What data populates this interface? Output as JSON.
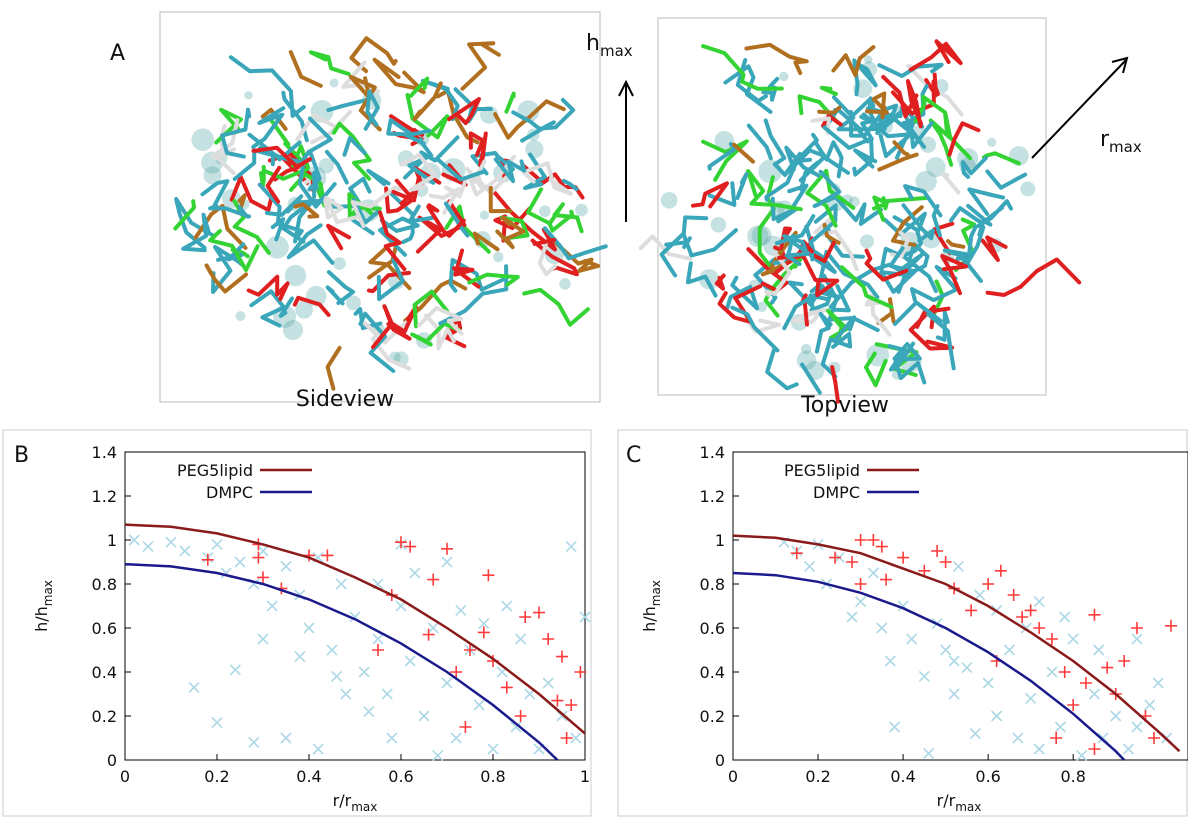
{
  "panel_a": {
    "label": "A",
    "h_label": {
      "main": "h",
      "sub": "max"
    },
    "r_label": {
      "main": "r",
      "sub": "max"
    },
    "side_caption": "Sideview",
    "top_caption": "Topview"
  },
  "chart_data": [
    {
      "type": "scatter",
      "panel_label": "B",
      "x_label": {
        "main": "r/r",
        "sub": "max"
      },
      "y_label": {
        "main": "h/h",
        "sub": "max"
      },
      "xlim": [
        0,
        1
      ],
      "ylim": [
        0,
        1.4
      ],
      "xticks": [
        0,
        0.2,
        0.4,
        0.6,
        0.8,
        1
      ],
      "yticks": [
        0,
        0.2,
        0.4,
        0.6,
        0.8,
        1,
        1.2,
        1.4
      ],
      "series": [
        {
          "name": "PEG5lipid",
          "color": "#8b1a1a",
          "style": "line",
          "x": [
            0,
            0.1,
            0.2,
            0.3,
            0.4,
            0.5,
            0.6,
            0.7,
            0.8,
            0.9,
            1.0
          ],
          "values": [
            1.07,
            1.06,
            1.03,
            0.98,
            0.92,
            0.83,
            0.73,
            0.6,
            0.46,
            0.3,
            0.12
          ]
        },
        {
          "name": "DMPC",
          "color": "#1a1a8c",
          "style": "line",
          "x": [
            0,
            0.1,
            0.2,
            0.3,
            0.4,
            0.5,
            0.6,
            0.7,
            0.8,
            0.9,
            0.94
          ],
          "values": [
            0.89,
            0.88,
            0.85,
            0.8,
            0.73,
            0.64,
            0.53,
            0.4,
            0.25,
            0.08,
            0
          ]
        },
        {
          "color": "#add8e6",
          "style": "x",
          "x": [
            0.02,
            0.05,
            0.1,
            0.13,
            0.18,
            0.2,
            0.22,
            0.25,
            0.28,
            0.3,
            0.32,
            0.35,
            0.38,
            0.4,
            0.42,
            0.45,
            0.47,
            0.5,
            0.52,
            0.55,
            0.57,
            0.6,
            0.62,
            0.65,
            0.67,
            0.7,
            0.72,
            0.75,
            0.77,
            0.8,
            0.82,
            0.85,
            0.88,
            0.9,
            0.95,
            0.97,
            0.98,
            0.24,
            0.2,
            0.28,
            0.35,
            0.15,
            0.42,
            0.48,
            0.58,
            0.63,
            0.68,
            0.73,
            0.78,
            0.83,
            0.46,
            0.53,
            0.38,
            0.3,
            0.6,
            0.7,
            0.86,
            0.92,
            1.0,
            0.55
          ],
          "values": [
            1.0,
            0.97,
            0.99,
            0.95,
            0.92,
            0.98,
            0.85,
            0.9,
            0.8,
            0.95,
            0.7,
            0.88,
            0.75,
            0.6,
            0.92,
            0.5,
            0.8,
            0.65,
            0.4,
            0.55,
            0.3,
            0.7,
            0.45,
            0.2,
            0.6,
            0.35,
            0.1,
            0.5,
            0.25,
            0.05,
            0.4,
            0.15,
            0.3,
            0.05,
            0.2,
            0.97,
            0.1,
            0.41,
            0.17,
            0.08,
            0.1,
            0.33,
            0.05,
            0.3,
            0.1,
            0.85,
            0.02,
            0.68,
            0.62,
            0.7,
            0.38,
            0.22,
            0.47,
            0.55,
            0.98,
            0.9,
            0.55,
            0.35,
            0.65,
            0.8
          ]
        },
        {
          "color": "#ff3b3b",
          "style": "+",
          "x": [
            0.18,
            0.29,
            0.29,
            0.3,
            0.34,
            0.4,
            0.44,
            0.58,
            0.6,
            0.62,
            0.67,
            0.66,
            0.7,
            0.75,
            0.78,
            0.79,
            0.8,
            0.83,
            0.87,
            0.9,
            0.92,
            0.94,
            0.95,
            0.97,
            0.99,
            0.96,
            0.72,
            0.74,
            0.86,
            0.55
          ],
          "values": [
            0.91,
            0.98,
            0.92,
            0.83,
            0.78,
            0.93,
            0.93,
            0.75,
            0.99,
            0.97,
            0.82,
            0.57,
            0.96,
            0.5,
            0.58,
            0.84,
            0.45,
            0.33,
            0.65,
            0.67,
            0.55,
            0.27,
            0.47,
            0.25,
            0.4,
            0.1,
            0.4,
            0.15,
            0.2,
            0.5
          ]
        }
      ]
    },
    {
      "type": "scatter",
      "panel_label": "C",
      "x_label": {
        "main": "r/r",
        "sub": "max"
      },
      "y_label": {
        "main": "h/h",
        "sub": "max"
      },
      "xlim": [
        0,
        1.07
      ],
      "ylim": [
        0,
        1.4
      ],
      "xticks": [
        0,
        0.2,
        0.4,
        0.6,
        0.8
      ],
      "yticks": [
        0,
        0.2,
        0.4,
        0.6,
        0.8,
        1,
        1.2,
        1.4
      ],
      "series": [
        {
          "name": "PEG5lipid",
          "color": "#8b1a1a",
          "style": "line",
          "x": [
            0,
            0.1,
            0.2,
            0.3,
            0.4,
            0.5,
            0.6,
            0.7,
            0.8,
            0.9,
            1.0,
            1.05
          ],
          "values": [
            1.02,
            1.01,
            0.98,
            0.94,
            0.87,
            0.8,
            0.7,
            0.58,
            0.45,
            0.3,
            0.13,
            0.04
          ]
        },
        {
          "name": "DMPC",
          "color": "#1a1a8c",
          "style": "line",
          "x": [
            0,
            0.1,
            0.2,
            0.3,
            0.4,
            0.5,
            0.6,
            0.7,
            0.8,
            0.9,
            0.92
          ],
          "values": [
            0.85,
            0.84,
            0.81,
            0.76,
            0.69,
            0.6,
            0.49,
            0.36,
            0.21,
            0.04,
            0
          ]
        },
        {
          "color": "#add8e6",
          "style": "x",
          "x": [
            0.12,
            0.15,
            0.18,
            0.2,
            0.22,
            0.25,
            0.3,
            0.33,
            0.35,
            0.37,
            0.4,
            0.42,
            0.45,
            0.48,
            0.5,
            0.52,
            0.55,
            0.57,
            0.6,
            0.62,
            0.65,
            0.67,
            0.7,
            0.72,
            0.75,
            0.77,
            0.8,
            0.82,
            0.85,
            0.87,
            0.9,
            0.93,
            0.95,
            0.98,
            1.02,
            0.53,
            0.58,
            0.62,
            0.69,
            0.72,
            0.78,
            0.46,
            0.38,
            0.28,
            0.52,
            0.86,
            0.95,
            1.0
          ],
          "values": [
            0.99,
            0.95,
            0.88,
            0.98,
            0.8,
            0.92,
            0.72,
            0.85,
            0.6,
            0.45,
            0.7,
            0.55,
            0.38,
            0.62,
            0.5,
            0.3,
            0.42,
            0.12,
            0.35,
            0.2,
            0.5,
            0.1,
            0.28,
            0.05,
            0.4,
            0.15,
            0.55,
            0.02,
            0.3,
            0.1,
            0.2,
            0.05,
            0.15,
            0.25,
            0.1,
            0.88,
            0.75,
            0.68,
            0.6,
            0.72,
            0.65,
            0.03,
            0.15,
            0.65,
            0.45,
            0.5,
            0.55,
            0.35
          ]
        },
        {
          "color": "#ff3b3b",
          "style": "+",
          "x": [
            0.15,
            0.24,
            0.28,
            0.3,
            0.33,
            0.35,
            0.3,
            0.36,
            0.4,
            0.45,
            0.48,
            0.5,
            0.52,
            0.56,
            0.6,
            0.63,
            0.66,
            0.68,
            0.7,
            0.72,
            0.75,
            0.78,
            0.8,
            0.83,
            0.85,
            0.88,
            0.9,
            0.92,
            0.95,
            1.03,
            0.97,
            0.99,
            0.62,
            0.76,
            0.85
          ],
          "values": [
            0.94,
            0.92,
            0.9,
            1.0,
            1.0,
            0.97,
            0.8,
            0.82,
            0.92,
            0.86,
            0.95,
            0.9,
            0.78,
            0.68,
            0.8,
            0.86,
            0.75,
            0.65,
            0.68,
            0.6,
            0.55,
            0.4,
            0.25,
            0.35,
            0.66,
            0.42,
            0.3,
            0.45,
            0.6,
            0.61,
            0.2,
            0.1,
            0.45,
            0.1,
            0.05
          ]
        }
      ]
    }
  ]
}
